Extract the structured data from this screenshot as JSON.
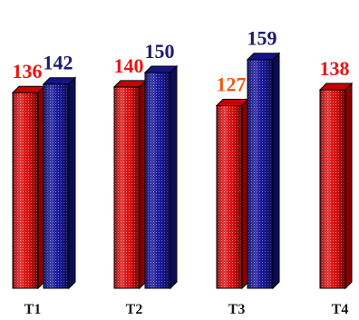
{
  "chart_data": {
    "type": "bar",
    "categories": [
      "T1",
      "T2",
      "T3",
      "T4"
    ],
    "series": [
      {
        "values": [
          136,
          140,
          127,
          138
        ],
        "color": "#e60000"
      },
      {
        "values": [
          142,
          150,
          159,
          null
        ],
        "color": "#1a1a9c"
      }
    ],
    "label_colors": [
      "#ee1111",
      "#1a1a6e"
    ],
    "label_color_overrides": [
      {
        "series": 0,
        "category": 2,
        "color": "#f05a14"
      }
    ],
    "ylim": [
      0,
      170
    ],
    "grid": false,
    "legend": "none"
  }
}
